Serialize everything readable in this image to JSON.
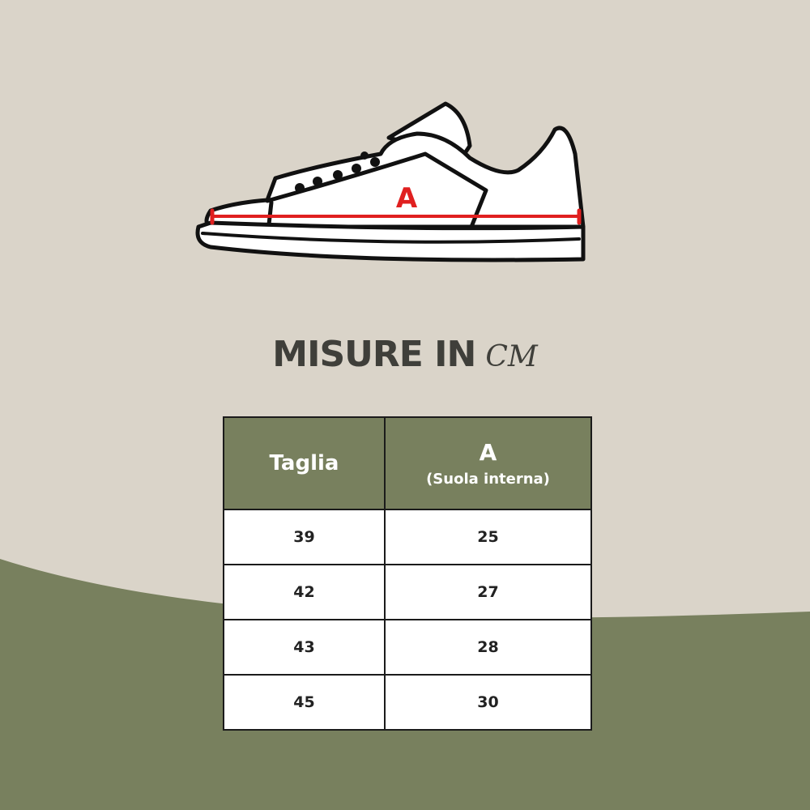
{
  "colors": {
    "background": "#dad4c9",
    "accent_green": "#78805e",
    "measure_red": "#e02020"
  },
  "illustration": {
    "icon": "sneaker-icon",
    "measure_label": "A"
  },
  "title": {
    "text": "MISURE IN",
    "unit": "CM"
  },
  "table": {
    "headers": {
      "size": "Taglia",
      "measure": "A",
      "measure_sub": "(Suola interna)"
    },
    "rows": [
      {
        "size": "39",
        "value": "25"
      },
      {
        "size": "42",
        "value": "27"
      },
      {
        "size": "43",
        "value": "28"
      },
      {
        "size": "45",
        "value": "30"
      }
    ]
  }
}
